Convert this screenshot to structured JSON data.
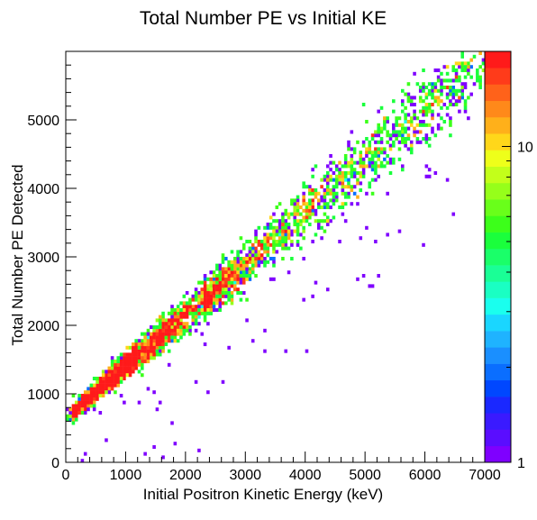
{
  "chart_data": {
    "type": "heatmap",
    "title": "Total Number PE vs Initial KE",
    "xlabel": "Initial Positron Kinetic Energy (keV)",
    "ylabel": "Total Number PE Detected",
    "xlim": [
      0,
      7000
    ],
    "ylim": [
      0,
      6000
    ],
    "x_ticks": [
      {
        "value": 0,
        "label": "0"
      },
      {
        "value": 1000,
        "label": "1000"
      },
      {
        "value": 2000,
        "label": "2000"
      },
      {
        "value": 3000,
        "label": "3000"
      },
      {
        "value": 4000,
        "label": "4000"
      },
      {
        "value": 5000,
        "label": "5000"
      },
      {
        "value": 6000,
        "label": "6000"
      },
      {
        "value": 7000,
        "label": "7000"
      }
    ],
    "y_ticks": [
      {
        "value": 0,
        "label": "0"
      },
      {
        "value": 1000,
        "label": "1000"
      },
      {
        "value": 2000,
        "label": "2000"
      },
      {
        "value": 3000,
        "label": "3000"
      },
      {
        "value": 4000,
        "label": "4000"
      },
      {
        "value": 5000,
        "label": "5000"
      }
    ],
    "z_scale": "log",
    "zlim": [
      1,
      20
    ],
    "z_ticks": [
      {
        "value": 1,
        "label": "1"
      },
      {
        "value": 10,
        "label": "10"
      }
    ],
    "palette": [
      "#7f00ff",
      "#5a0dff",
      "#3a1aff",
      "#1a28ff",
      "#0047ff",
      "#0a6eff",
      "#1a8fff",
      "#1fb3ff",
      "#1ad6ff",
      "#1affee",
      "#1affc3",
      "#1aff96",
      "#1aff69",
      "#1aff3c",
      "#3cff1a",
      "#69ff1a",
      "#96ff1a",
      "#c3ff1a",
      "#eeff1a",
      "#ffd71a",
      "#ffb01a",
      "#ff891a",
      "#ff621a",
      "#ff3b1a",
      "#ff1a1a"
    ],
    "band": {
      "slope_pe_per_kev": 0.745,
      "intercept_pe": 660,
      "peak_kev": 1500
    },
    "bins": {
      "nx": 140,
      "ny": 120,
      "x_width_kev": 50,
      "y_width_pe": 50
    }
  }
}
